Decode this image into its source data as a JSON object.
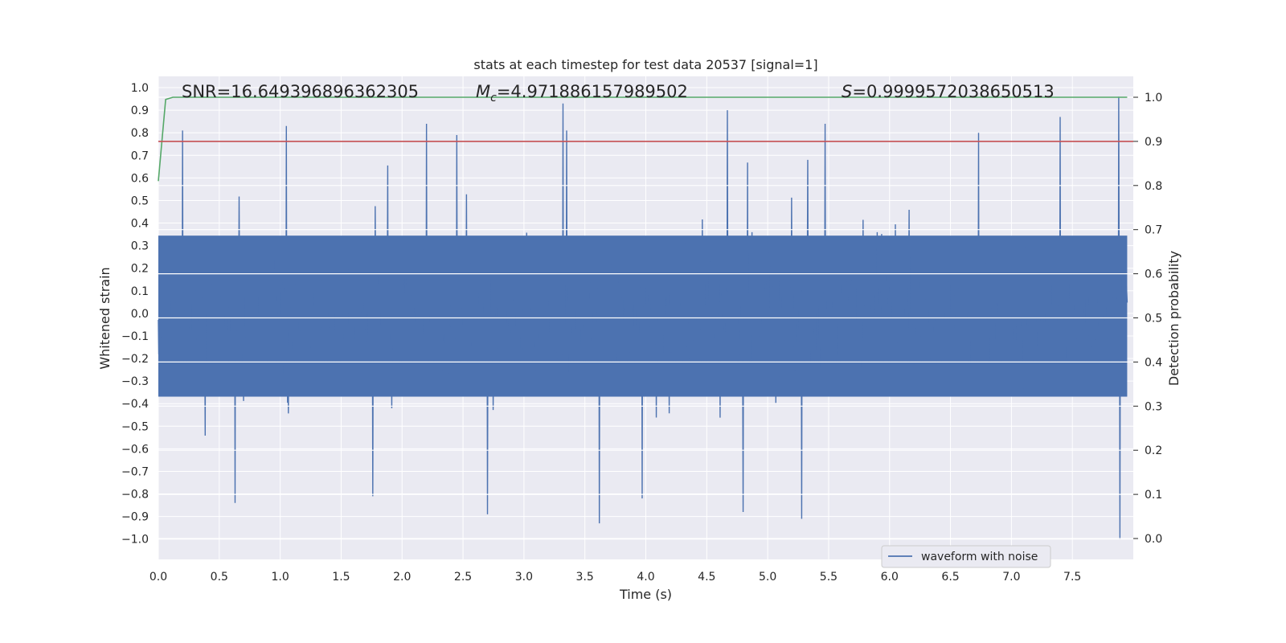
{
  "chart_data": {
    "type": "line",
    "title": "stats at each timestep for test data 20537 [signal=1]",
    "xlabel": "Time (s)",
    "ylabel_left": "Whitened strain",
    "ylabel_right": "Detection probability",
    "xlim": [
      0.0,
      8.0
    ],
    "ylim_left": [
      -1.09,
      1.05
    ],
    "ylim_right": [
      0.0,
      1.0
    ],
    "x_ticks": [
      "0.0",
      "0.5",
      "1.0",
      "1.5",
      "2.0",
      "2.5",
      "3.0",
      "3.5",
      "4.0",
      "4.5",
      "5.0",
      "5.5",
      "6.0",
      "6.5",
      "7.0",
      "7.5"
    ],
    "x_tick_values": [
      0.0,
      0.5,
      1.0,
      1.5,
      2.0,
      2.5,
      3.0,
      3.5,
      4.0,
      4.5,
      5.0,
      5.5,
      6.0,
      6.5,
      7.0,
      7.5
    ],
    "y_left_ticks": [
      "1.0",
      "0.9",
      "0.8",
      "0.7",
      "0.6",
      "0.5",
      "0.4",
      "0.3",
      "0.2",
      "0.1",
      "0.0",
      "−0.1",
      "−0.2",
      "−0.3",
      "−0.4",
      "−0.5",
      "−0.6",
      "−0.7",
      "−0.8",
      "−0.9",
      "−1.0"
    ],
    "y_left_tick_values": [
      1.0,
      0.9,
      0.8,
      0.7,
      0.6,
      0.5,
      0.4,
      0.3,
      0.2,
      0.1,
      0.0,
      -0.1,
      -0.2,
      -0.3,
      -0.4,
      -0.5,
      -0.6,
      -0.7,
      -0.8,
      -0.9,
      -1.0
    ],
    "y_right_ticks": [
      "1.0",
      "0.9",
      "0.8",
      "0.7",
      "0.6",
      "0.5",
      "0.4",
      "0.3",
      "0.2",
      "0.1",
      "0.0"
    ],
    "y_right_tick_values": [
      1.0,
      0.9,
      0.8,
      0.7,
      0.6,
      0.5,
      0.4,
      0.3,
      0.2,
      0.1,
      0.0
    ],
    "annotations": {
      "snr": "SNR=16.649396896362305",
      "mc_symbol": "M",
      "mc_sub": "c",
      "mc_value": "=4.971886157989502",
      "s_symbol": "S",
      "s_value": "=0.9999572038650513"
    },
    "legend": [
      "waveform with noise"
    ],
    "series": [
      {
        "name": "waveform with noise",
        "axis": "left",
        "color": "#4c72b0",
        "kind": "noisy-strain",
        "duration_s": 7.95,
        "approx_envelope": [
          -0.45,
          0.42
        ],
        "spikes": [
          {
            "t": 0.2,
            "v": 0.81
          },
          {
            "t": 1.05,
            "v": 0.83
          },
          {
            "t": 2.2,
            "v": 0.84
          },
          {
            "t": 2.45,
            "v": 0.79
          },
          {
            "t": 3.32,
            "v": 0.93
          },
          {
            "t": 3.35,
            "v": 0.81
          },
          {
            "t": 4.67,
            "v": 0.9
          },
          {
            "t": 5.47,
            "v": 0.84
          },
          {
            "t": 6.73,
            "v": 0.8
          },
          {
            "t": 7.4,
            "v": 0.87
          },
          {
            "t": 7.88,
            "v": 0.96
          },
          {
            "t": 0.63,
            "v": -0.84
          },
          {
            "t": 1.76,
            "v": -0.81
          },
          {
            "t": 2.7,
            "v": -0.89
          },
          {
            "t": 3.62,
            "v": -0.93
          },
          {
            "t": 3.97,
            "v": -0.82
          },
          {
            "t": 4.8,
            "v": -0.88
          },
          {
            "t": 5.28,
            "v": -0.91
          },
          {
            "t": 7.89,
            "v": -1.0
          }
        ]
      },
      {
        "name": "detection probability",
        "axis": "right",
        "color": "#55a868",
        "x": [
          0.0,
          0.06,
          0.12,
          7.95
        ],
        "y": [
          0.81,
          0.995,
          1.0,
          1.0
        ]
      },
      {
        "name": "threshold",
        "axis": "right",
        "color": "#c44e52",
        "x": [
          0.0,
          8.0
        ],
        "y": [
          0.9,
          0.9
        ]
      }
    ]
  }
}
